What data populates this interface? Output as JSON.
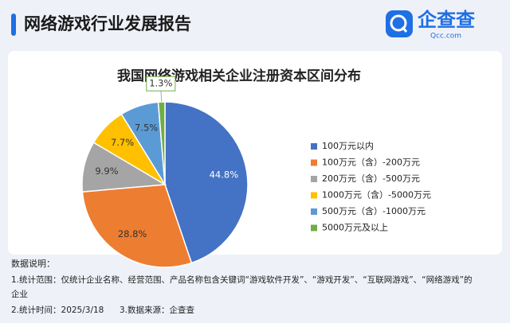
{
  "header": {
    "title": "网络游戏行业发展报告",
    "logo": "企查查",
    "logo_sub": "Qcc.com"
  },
  "chart_data": {
    "type": "pie",
    "title": "我国网络游戏相关企业注册资本区间分布",
    "categories": [
      "100万元以内",
      "100万元（含）-200万元",
      "200万元（含）-500万元",
      "1000万元（含）-5000万元",
      "500万元（含）-1000万元",
      "5000万元及以上"
    ],
    "values": [
      44.8,
      28.8,
      9.9,
      7.7,
      7.5,
      1.3
    ],
    "value_labels": [
      "44.8%",
      "28.8%",
      "9.9%",
      "7.7%",
      "7.5%",
      "1.3%"
    ],
    "colors": [
      "#4472c4",
      "#ed7d31",
      "#a5a5a5",
      "#ffc000",
      "#5b9bd5",
      "#70ad47"
    ],
    "legend": "right"
  },
  "notes": {
    "title": "数据说明：",
    "items": [
      "1.统计范围：仅统计企业名称、经营范围、产品名称包含关键词“游戏软件开发”、“游戏开发”、“互联网游戏”、“网络游戏”的",
      "企业",
      "2.统计时间：2025/3/18",
      "3.数据来源：企查查"
    ]
  }
}
